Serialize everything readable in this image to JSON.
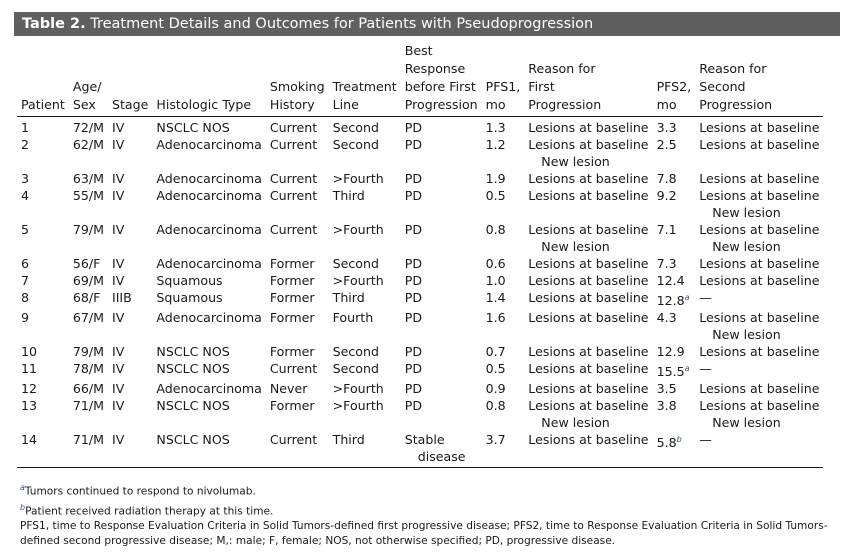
{
  "title": {
    "label": "Table 2.",
    "text": "Treatment Details and Outcomes for Patients with Pseudoprogression"
  },
  "headers": [
    [
      "Patient"
    ],
    [
      "Age/",
      "Sex"
    ],
    [
      "Stage"
    ],
    [
      "Histologic Type"
    ],
    [
      "Smoking",
      "History"
    ],
    [
      "Treatment",
      "Line"
    ],
    [
      "Best",
      "Response",
      "before First",
      "Progression"
    ],
    [
      "PFS1,",
      "mo"
    ],
    [
      "Reason for",
      "First",
      "Progression"
    ],
    [
      "PFS2,",
      "mo"
    ],
    [
      "Reason for",
      "Second",
      "Progression"
    ]
  ],
  "rows": [
    {
      "patient": "1",
      "age_sex": "72/M",
      "stage": "IV",
      "histology": "NSCLC NOS",
      "smoking": "Current",
      "line": "Second",
      "best": [
        "PD"
      ],
      "pfs1": "1.3",
      "reason1": [
        "Lesions at baseline"
      ],
      "pfs2": "3.3",
      "pfs2_sup": "",
      "reason2": [
        "Lesions at baseline"
      ]
    },
    {
      "patient": "2",
      "age_sex": "62/M",
      "stage": "IV",
      "histology": "Adenocarcinoma",
      "smoking": "Current",
      "line": "Second",
      "best": [
        "PD"
      ],
      "pfs1": "1.2",
      "reason1": [
        "Lesions at baseline",
        "New lesion"
      ],
      "pfs2": "2.5",
      "pfs2_sup": "",
      "reason2": [
        "Lesions at baseline"
      ]
    },
    {
      "patient": "3",
      "age_sex": "63/M",
      "stage": "IV",
      "histology": "Adenocarcinoma",
      "smoking": "Current",
      "line": ">Fourth",
      "best": [
        "PD"
      ],
      "pfs1": "1.9",
      "reason1": [
        "Lesions at baseline"
      ],
      "pfs2": "7.8",
      "pfs2_sup": "",
      "reason2": [
        "Lesions at baseline"
      ]
    },
    {
      "patient": "4",
      "age_sex": "55/M",
      "stage": "IV",
      "histology": "Adenocarcinoma",
      "smoking": "Current",
      "line": "Third",
      "best": [
        "PD"
      ],
      "pfs1": "0.5",
      "reason1": [
        "Lesions at baseline"
      ],
      "pfs2": "9.2",
      "pfs2_sup": "",
      "reason2": [
        "Lesions at baseline",
        "New lesion"
      ]
    },
    {
      "patient": "5",
      "age_sex": "79/M",
      "stage": "IV",
      "histology": "Adenocarcinoma",
      "smoking": "Current",
      "line": ">Fourth",
      "best": [
        "PD"
      ],
      "pfs1": "0.8",
      "reason1": [
        "Lesions at baseline",
        "New lesion"
      ],
      "pfs2": "7.1",
      "pfs2_sup": "",
      "reason2": [
        "Lesions at baseline",
        "New lesion"
      ]
    },
    {
      "patient": "6",
      "age_sex": "56/F",
      "stage": "IV",
      "histology": "Adenocarcinoma",
      "smoking": "Former",
      "line": "Second",
      "best": [
        "PD"
      ],
      "pfs1": "0.6",
      "reason1": [
        "Lesions at baseline"
      ],
      "pfs2": "7.3",
      "pfs2_sup": "",
      "reason2": [
        "Lesions at baseline"
      ]
    },
    {
      "patient": "7",
      "age_sex": "69/M",
      "stage": "IV",
      "histology": "Squamous",
      "smoking": "Former",
      "line": ">Fourth",
      "best": [
        "PD"
      ],
      "pfs1": "1.0",
      "reason1": [
        "Lesions at baseline"
      ],
      "pfs2": "12.4",
      "pfs2_sup": "",
      "reason2": [
        "Lesions at baseline"
      ]
    },
    {
      "patient": "8",
      "age_sex": "68/F",
      "stage": "IIIB",
      "histology": "Squamous",
      "smoking": "Former",
      "line": "Third",
      "best": [
        "PD"
      ],
      "pfs1": "1.4",
      "reason1": [
        "Lesions at baseline"
      ],
      "pfs2": "12.8",
      "pfs2_sup": "a",
      "reason2": [
        "—"
      ]
    },
    {
      "patient": "9",
      "age_sex": "67/M",
      "stage": "IV",
      "histology": "Adenocarcinoma",
      "smoking": "Former",
      "line": "Fourth",
      "best": [
        "PD"
      ],
      "pfs1": "1.6",
      "reason1": [
        "Lesions at baseline"
      ],
      "pfs2": "4.3",
      "pfs2_sup": "",
      "reason2": [
        "Lesions at baseline",
        "New lesion"
      ]
    },
    {
      "patient": "10",
      "age_sex": "79/M",
      "stage": "IV",
      "histology": "NSCLC NOS",
      "smoking": "Former",
      "line": "Second",
      "best": [
        "PD"
      ],
      "pfs1": "0.7",
      "reason1": [
        "Lesions at baseline"
      ],
      "pfs2": "12.9",
      "pfs2_sup": "",
      "reason2": [
        "Lesions at baseline"
      ]
    },
    {
      "patient": "11",
      "age_sex": "78/M",
      "stage": "IV",
      "histology": "NSCLC NOS",
      "smoking": "Current",
      "line": "Second",
      "best": [
        "PD"
      ],
      "pfs1": "0.5",
      "reason1": [
        "Lesions at baseline"
      ],
      "pfs2": "15.5",
      "pfs2_sup": "a",
      "reason2": [
        "—"
      ]
    },
    {
      "patient": "12",
      "age_sex": "66/M",
      "stage": "IV",
      "histology": "Adenocarcinoma",
      "smoking": "Never",
      "line": ">Fourth",
      "best": [
        "PD"
      ],
      "pfs1": "0.9",
      "reason1": [
        "Lesions at baseline"
      ],
      "pfs2": "3.5",
      "pfs2_sup": "",
      "reason2": [
        "Lesions at baseline"
      ]
    },
    {
      "patient": "13",
      "age_sex": "71/M",
      "stage": "IV",
      "histology": "NSCLC NOS",
      "smoking": "Former",
      "line": ">Fourth",
      "best": [
        "PD"
      ],
      "pfs1": "0.8",
      "reason1": [
        "Lesions at baseline",
        "New lesion"
      ],
      "pfs2": "3.8",
      "pfs2_sup": "",
      "reason2": [
        "Lesions at baseline",
        "New lesion"
      ]
    },
    {
      "patient": "14",
      "age_sex": "71/M",
      "stage": "IV",
      "histology": "NSCLC NOS",
      "smoking": "Current",
      "line": "Third",
      "best": [
        "Stable",
        "disease"
      ],
      "pfs1": "3.7",
      "reason1": [
        "Lesions at baseline"
      ],
      "pfs2": "5.8",
      "pfs2_sup": "b",
      "reason2": [
        "—"
      ]
    }
  ],
  "footnotes": [
    {
      "mark": "a",
      "text": "Tumors continued to respond to nivolumab."
    },
    {
      "mark": "b",
      "text": "Patient received radiation therapy at this time."
    },
    {
      "mark": "",
      "text": "PFS1, time to Response Evaluation Criteria in Solid Tumors-defined first progressive disease; PFS2, time to Response Evaluation Criteria in Solid Tumors-defined second progressive disease; M,: male; F, female; NOS, not otherwise specified; PD, progressive disease."
    }
  ],
  "colors": {
    "title_bar": "#5f5f5f",
    "footnote_mark": "#2a4f9e"
  }
}
